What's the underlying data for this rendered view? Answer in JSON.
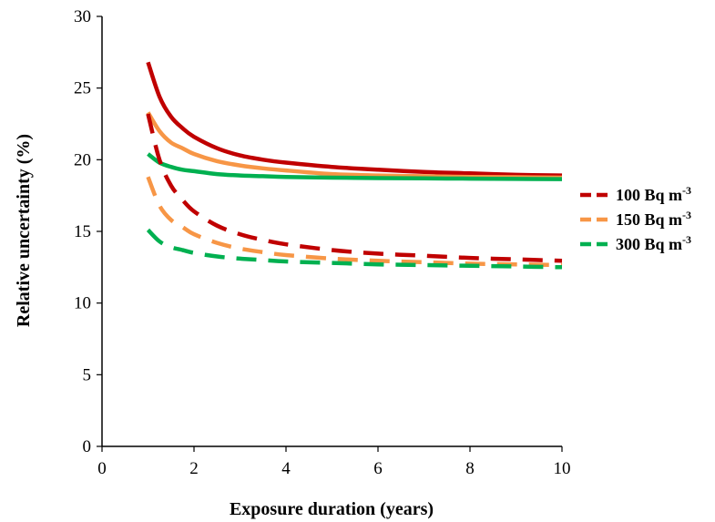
{
  "chart_data": {
    "type": "line",
    "title": "",
    "xlabel": "Exposure duration (years)",
    "ylabel": "Relative uncertainty (%)",
    "xlim": [
      0,
      10
    ],
    "ylim": [
      0,
      30
    ],
    "xticks": [
      0,
      2,
      4,
      6,
      8,
      10
    ],
    "yticks": [
      0,
      5,
      10,
      15,
      20,
      25,
      30
    ],
    "grid": false,
    "legend_position": "right",
    "legend": [
      {
        "label": "100 Bq m",
        "sup": "-3",
        "color": "#c00000"
      },
      {
        "label": "150 Bq m",
        "sup": "-3",
        "color": "#f79646"
      },
      {
        "label": "300 Bq m",
        "sup": "-3",
        "color": "#00b050"
      }
    ],
    "x": [
      1,
      1.25,
      1.5,
      1.75,
      2,
      2.5,
      3,
      3.5,
      4,
      5,
      6,
      7,
      8,
      9,
      10
    ],
    "series": [
      {
        "name": "100 Bq m-3",
        "style": "solid",
        "color": "#c00000",
        "values": [
          26.8,
          24.4,
          23.0,
          22.2,
          21.6,
          20.8,
          20.3,
          20.0,
          19.8,
          19.5,
          19.3,
          19.15,
          19.05,
          18.95,
          18.9
        ]
      },
      {
        "name": "150 Bq m-3",
        "style": "solid",
        "color": "#f79646",
        "values": [
          23.3,
          22.0,
          21.2,
          20.8,
          20.4,
          19.9,
          19.6,
          19.4,
          19.25,
          19.0,
          18.9,
          18.85,
          18.8,
          18.78,
          18.75
        ]
      },
      {
        "name": "300 Bq m-3",
        "style": "solid",
        "color": "#00b050",
        "values": [
          20.4,
          19.8,
          19.5,
          19.3,
          19.2,
          19.0,
          18.9,
          18.85,
          18.8,
          18.75,
          18.72,
          18.7,
          18.68,
          18.66,
          18.65
        ]
      },
      {
        "name": "100 Bq m-3",
        "style": "dashed",
        "color": "#c00000",
        "values": [
          23.2,
          20.0,
          18.2,
          17.2,
          16.4,
          15.4,
          14.8,
          14.4,
          14.1,
          13.7,
          13.45,
          13.3,
          13.15,
          13.05,
          12.95
        ]
      },
      {
        "name": "150 Bq m-3",
        "style": "dashed",
        "color": "#f79646",
        "values": [
          18.8,
          16.8,
          15.8,
          15.3,
          14.8,
          14.2,
          13.8,
          13.55,
          13.35,
          13.1,
          12.95,
          12.85,
          12.75,
          12.7,
          12.65
        ]
      },
      {
        "name": "300 Bq m-3",
        "style": "dashed",
        "color": "#00b050",
        "values": [
          15.1,
          14.3,
          13.9,
          13.7,
          13.5,
          13.25,
          13.1,
          13.0,
          12.9,
          12.8,
          12.7,
          12.65,
          12.6,
          12.55,
          12.5
        ]
      }
    ]
  }
}
